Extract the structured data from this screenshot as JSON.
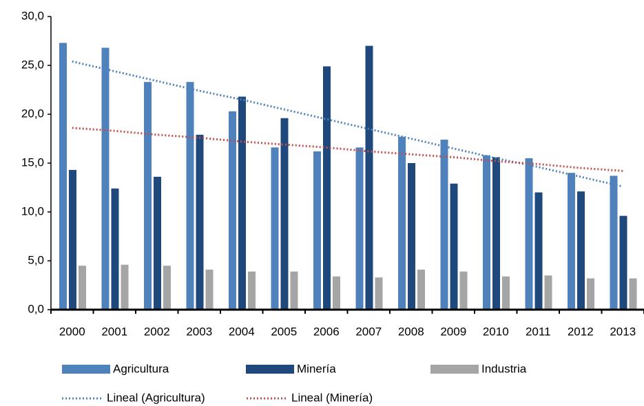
{
  "chart_data": {
    "type": "bar",
    "categories": [
      "2000",
      "2001",
      "2002",
      "2003",
      "2004",
      "2005",
      "2006",
      "2007",
      "2008",
      "2009",
      "2010",
      "2011",
      "2012",
      "2013"
    ],
    "series": [
      {
        "name": "Agricultura",
        "color": "#4f81bd",
        "values": [
          27.3,
          26.8,
          23.3,
          23.3,
          20.3,
          16.6,
          16.2,
          16.6,
          17.7,
          17.4,
          15.8,
          15.5,
          14.0,
          13.7
        ]
      },
      {
        "name": "Minería",
        "color": "#1f497d",
        "values": [
          14.3,
          12.4,
          13.6,
          17.9,
          21.8,
          19.6,
          24.9,
          27.0,
          15.0,
          12.9,
          15.6,
          12.0,
          12.1,
          9.6
        ]
      },
      {
        "name": "Industria",
        "color": "#a5a5a5",
        "values": [
          4.5,
          4.6,
          4.5,
          4.1,
          3.9,
          3.9,
          3.4,
          3.3,
          4.1,
          3.9,
          3.4,
          3.5,
          3.2,
          3.2
        ]
      }
    ],
    "trendlines": [
      {
        "name": "Lineal (Agricultura)",
        "color": "#4f81bd",
        "values": [
          25.4,
          24.4,
          23.4,
          22.4,
          21.5,
          20.5,
          19.5,
          18.5,
          17.5,
          16.5,
          15.5,
          14.6,
          13.6,
          12.6
        ]
      },
      {
        "name": "Lineal (Minería)",
        "color": "#c0504d",
        "values": [
          18.6,
          18.3,
          17.9,
          17.6,
          17.2,
          16.9,
          16.6,
          16.2,
          15.9,
          15.6,
          15.2,
          14.9,
          14.5,
          14.2
        ]
      }
    ],
    "ylim": [
      0,
      30
    ],
    "yticks": [
      {
        "value": 0,
        "label": "0,0"
      },
      {
        "value": 5,
        "label": "5,0"
      },
      {
        "value": 10,
        "label": "10,0"
      },
      {
        "value": 15,
        "label": "15,0"
      },
      {
        "value": 20,
        "label": "20,0"
      },
      {
        "value": 25,
        "label": "25,0"
      },
      {
        "value": 30,
        "label": "30,0"
      }
    ],
    "grid": false,
    "legend": "bottom"
  }
}
